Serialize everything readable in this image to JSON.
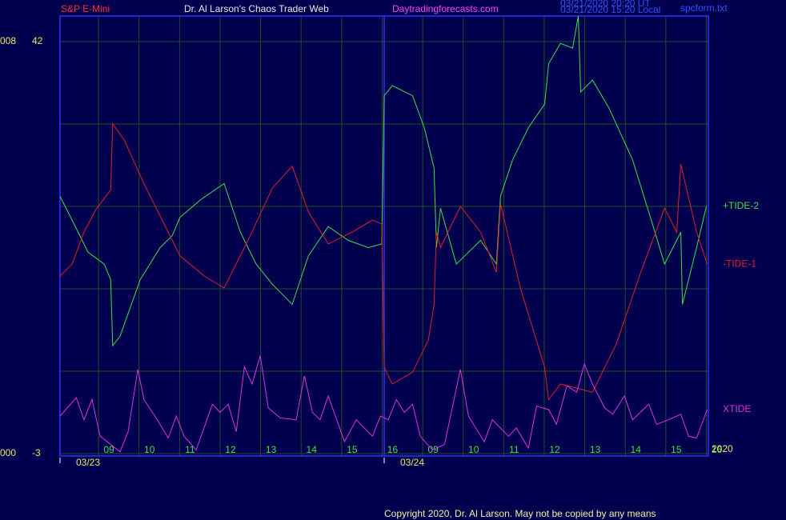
{
  "chart_data": {
    "type": "line",
    "header": {
      "symbol": "S&P E-Mini",
      "title": "Dr. Al Larson's Chaos Trader Web",
      "site": "Daytradingforecasts.com",
      "file": "spcform.txt",
      "stamps": [
        "03/21/2020 20:20 UT",
        "03/21/2020 15:20 Local"
      ]
    },
    "xlim": [
      -0.95,
      15.05
    ],
    "xticks": [
      {
        "value": 0,
        "label": "09"
      },
      {
        "value": 1,
        "label": "10"
      },
      {
        "value": 2,
        "label": "11"
      },
      {
        "value": 3,
        "label": "12"
      },
      {
        "value": 4,
        "label": "13"
      },
      {
        "value": 5,
        "label": "14"
      },
      {
        "value": 6,
        "label": "15"
      },
      {
        "value": 7,
        "label": "16"
      },
      {
        "value": 8,
        "label": "09"
      },
      {
        "value": 9,
        "label": "10"
      },
      {
        "value": 10,
        "label": "11"
      },
      {
        "value": 11,
        "label": "12"
      },
      {
        "value": 12,
        "label": "13"
      },
      {
        "value": 13,
        "label": "14"
      },
      {
        "value": 14,
        "label": "15"
      },
      {
        "value": 15,
        "label": "16"
      }
    ],
    "date_ticks": [
      {
        "value": -0.95,
        "label": "03/23"
      },
      {
        "value": 7.05,
        "label": "03/24"
      }
    ],
    "year": "2020",
    "ylim": [
      -3,
      44.8
    ],
    "yticks": [
      42,
      -3
    ],
    "ygrid": [
      33,
      24,
      15,
      6
    ],
    "left_axis_labels": [
      "008",
      "000"
    ],
    "grid": true,
    "series": [
      {
        "name": "+TIDE-2",
        "color": "#40e040",
        "x": [
          -0.95,
          -0.55,
          -0.26,
          0.14,
          0.3,
          0.35,
          0.53,
          1.03,
          1.52,
          1.82,
          2.01,
          2.51,
          3.1,
          3.5,
          3.89,
          4.29,
          4.78,
          5.18,
          5.67,
          6.16,
          6.66,
          6.99,
          7.05,
          7.25,
          7.75,
          8.04,
          8.28,
          8.34,
          8.44,
          8.83,
          9.43,
          9.82,
          9.92,
          10.22,
          10.61,
          11.01,
          11.11,
          11.4,
          11.7,
          11.84,
          11.9,
          12.19,
          12.59,
          13.18,
          13.67,
          13.97,
          14.37,
          14.41,
          14.76,
          15.0
        ],
        "values": [
          25.1,
          21.6,
          19.0,
          17.7,
          16.0,
          8.8,
          9.8,
          16.0,
          19.5,
          20.8,
          22.8,
          24.7,
          26.5,
          21.2,
          17.7,
          15.5,
          13.3,
          18.6,
          21.8,
          20.3,
          19.5,
          19.9,
          36.1,
          37.2,
          36.1,
          32.6,
          28.2,
          19.5,
          23.8,
          17.7,
          20.3,
          17.7,
          25.1,
          29.1,
          32.6,
          35.2,
          39.6,
          41.8,
          41.3,
          44.8,
          36.5,
          37.8,
          34.8,
          29.1,
          22.1,
          17.7,
          21.2,
          13.3,
          19.5,
          24.0
        ]
      },
      {
        "name": "-TIDE-1",
        "color": "#e02020",
        "x": [
          -0.95,
          -0.65,
          -0.36,
          -0.06,
          0.3,
          0.35,
          0.63,
          1.12,
          1.72,
          2.01,
          2.61,
          3.1,
          3.69,
          4.29,
          4.78,
          5.18,
          5.67,
          6.26,
          6.76,
          6.99,
          7.05,
          7.25,
          7.75,
          8.14,
          8.28,
          8.34,
          8.44,
          8.93,
          9.43,
          9.82,
          9.92,
          10.41,
          11.01,
          11.11,
          11.4,
          12.19,
          12.78,
          13.38,
          13.97,
          14.27,
          14.37,
          14.76,
          15.02
        ],
        "values": [
          16.4,
          17.7,
          21.2,
          23.7,
          25.8,
          33.0,
          31.3,
          26.5,
          21.2,
          18.6,
          16.4,
          15.1,
          20.3,
          26.0,
          28.4,
          23.4,
          19.9,
          21.2,
          22.5,
          22.1,
          6.4,
          4.6,
          5.9,
          9.4,
          13.3,
          21.2,
          19.5,
          24.0,
          21.2,
          16.8,
          24.3,
          15.1,
          6.4,
          2.9,
          4.6,
          3.7,
          9.0,
          16.8,
          23.8,
          21.2,
          28.6,
          21.2,
          17.7
        ]
      },
      {
        "name": "XTIDE",
        "color": "#e030e0",
        "x": [
          -0.95,
          -0.55,
          -0.36,
          -0.16,
          0.04,
          0.53,
          0.73,
          0.97,
          1.12,
          1.42,
          1.72,
          1.92,
          2.11,
          2.41,
          2.81,
          3.0,
          3.2,
          3.4,
          3.6,
          3.79,
          3.99,
          4.19,
          4.48,
          4.88,
          5.08,
          5.28,
          5.47,
          5.67,
          6.07,
          6.36,
          6.76,
          6.96,
          7.15,
          7.35,
          7.55,
          7.75,
          7.94,
          8.24,
          8.54,
          8.93,
          9.13,
          9.52,
          9.72,
          10.12,
          10.31,
          10.61,
          10.81,
          11.11,
          11.3,
          11.56,
          11.8,
          11.99,
          12.19,
          12.49,
          12.69,
          12.98,
          13.18,
          13.58,
          13.77,
          14.07,
          14.37,
          14.56,
          14.76,
          15.02
        ],
        "values": [
          1.1,
          3.1,
          0.7,
          2.9,
          -1.1,
          -2.8,
          -0.6,
          6.2,
          2.9,
          0.9,
          -1.3,
          1.1,
          -1.1,
          -2.6,
          2.4,
          1.5,
          2.4,
          -0.6,
          6.5,
          4.6,
          7.7,
          2.0,
          0.9,
          0.7,
          5.5,
          1.5,
          0.7,
          3.3,
          -1.7,
          0.7,
          -1.1,
          1.1,
          0.7,
          2.9,
          1.5,
          2.4,
          -1.1,
          -2.6,
          -2.0,
          6.2,
          1.1,
          -1.7,
          0.7,
          -1.1,
          -0.2,
          -2.4,
          2.2,
          1.8,
          0.2,
          4.4,
          3.7,
          6.8,
          4.6,
          2.0,
          1.3,
          3.3,
          0.7,
          2.4,
          0.2,
          0.7,
          1.3,
          -1.1,
          -1.3,
          1.8
        ]
      }
    ],
    "copyright": "Copyright 2020, Dr. Al Larson. May not be copied by any means"
  }
}
